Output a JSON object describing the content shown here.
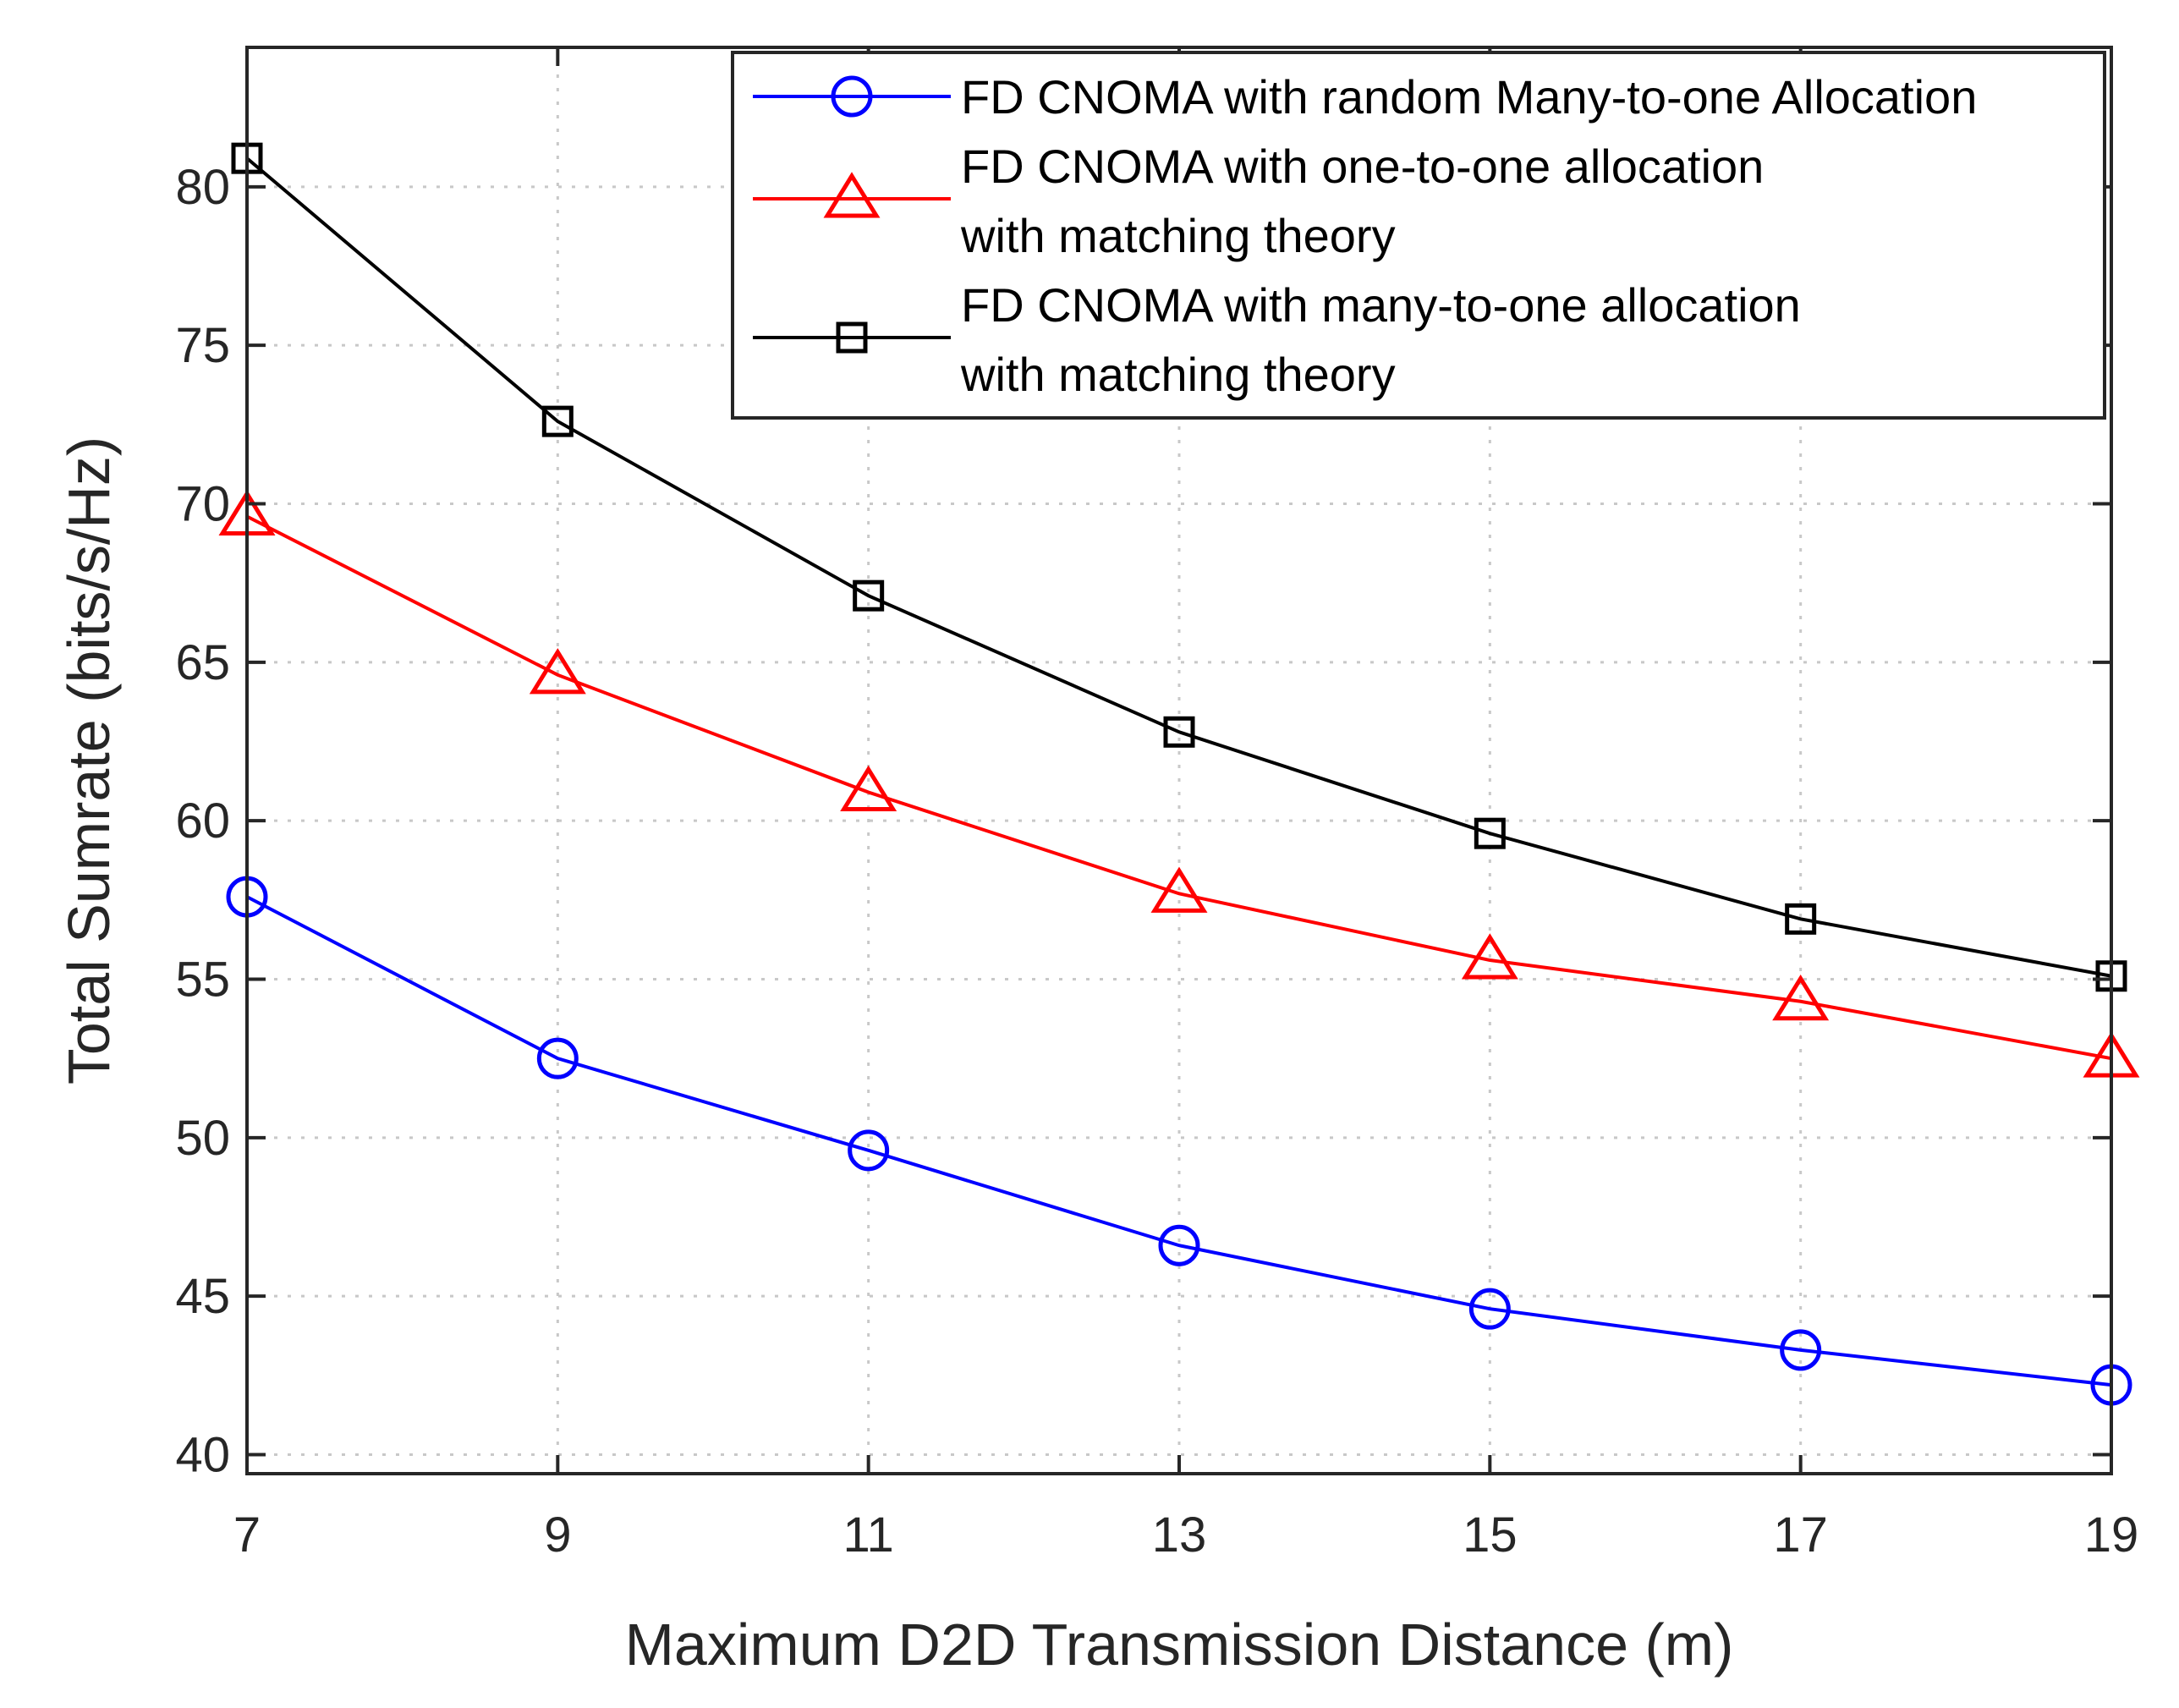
{
  "chart_data": {
    "type": "line",
    "xlabel": "Maximum D2D Transmission Distance (m)",
    "ylabel": "Total Sumrate (bits/s/Hz)",
    "xlim": [
      7,
      19
    ],
    "ylim": [
      39.4,
      84.4
    ],
    "x_ticks": [
      7,
      9,
      11,
      13,
      15,
      17,
      19
    ],
    "y_ticks": [
      40,
      45,
      50,
      55,
      60,
      65,
      70,
      75,
      80
    ],
    "grid": true,
    "legend_position": "top-right",
    "x": [
      7,
      9,
      11,
      13,
      15,
      17,
      19
    ],
    "series": [
      {
        "name": "FD CNOMA with random Many-to-one Allocation",
        "legend_lines": [
          "FD CNOMA with random Many-to-one Allocation"
        ],
        "color": "#0000ff",
        "marker": "circle",
        "values": [
          57.6,
          52.5,
          49.6,
          46.6,
          44.6,
          43.3,
          42.2
        ]
      },
      {
        "name": "FD CNOMA with one-to-one allocation with matching theory",
        "legend_lines": [
          "FD CNOMA with one-to-one allocation",
          "with matching theory"
        ],
        "color": "#ff0000",
        "marker": "triangle",
        "values": [
          69.6,
          64.6,
          60.9,
          57.7,
          55.6,
          54.3,
          52.5
        ]
      },
      {
        "name": "FD CNOMA with many-to-one allocation with matching theory",
        "legend_lines": [
          "FD CNOMA with many-to-one allocation",
          "with matching theory"
        ],
        "color": "#000000",
        "marker": "square",
        "values": [
          80.9,
          72.6,
          67.1,
          62.8,
          59.6,
          56.9,
          55.1
        ]
      }
    ]
  }
}
